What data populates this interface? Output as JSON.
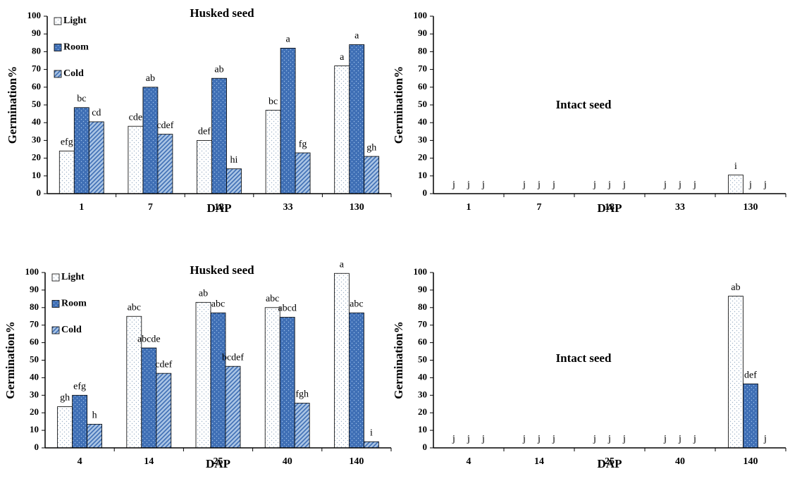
{
  "chart_data": [
    {
      "type": "bar",
      "title": "Husked seed",
      "x_label": "DAP",
      "y_label": "Germination%",
      "categories": [
        "1",
        "7",
        "18",
        "33",
        "130"
      ],
      "ylim": [
        0,
        100
      ],
      "yticks": [
        0,
        10,
        20,
        30,
        40,
        50,
        60,
        70,
        80,
        90,
        100
      ],
      "legend": "upper left",
      "series": [
        {
          "name": "Light",
          "color": "#ffffff",
          "pattern": "dots",
          "values": [
            24,
            38,
            30,
            47,
            72
          ],
          "labels": [
            "efg",
            "cde",
            "def",
            "bc",
            "a"
          ]
        },
        {
          "name": "Room",
          "color": "#3f6fb5",
          "pattern": "dots",
          "values": [
            48.5,
            60,
            65,
            82,
            84
          ],
          "labels": [
            "bc",
            "ab",
            "ab",
            "a",
            "a"
          ]
        },
        {
          "name": "Cold",
          "color": "#a9c4e4",
          "pattern": "diagonal",
          "values": [
            40.5,
            33.5,
            14,
            23,
            21
          ],
          "labels": [
            "cd",
            "cdef",
            "hi",
            "fg",
            "gh"
          ]
        }
      ]
    },
    {
      "type": "bar",
      "title": "Intact seed",
      "x_label": "DAP",
      "y_label": "Germination%",
      "categories": [
        "1",
        "7",
        "18",
        "33",
        "130"
      ],
      "ylim": [
        0,
        100
      ],
      "yticks": [
        0,
        10,
        20,
        30,
        40,
        50,
        60,
        70,
        80,
        90,
        100
      ],
      "series": [
        {
          "color": "#ffffff",
          "pattern": "dots",
          "values": [
            0,
            0,
            0,
            0,
            10.5
          ],
          "labels": [
            "j",
            "j",
            "j",
            "j",
            "i"
          ]
        },
        {
          "color": "#3f6fb5",
          "pattern": "dots",
          "values": [
            0,
            0,
            0,
            0,
            0
          ],
          "labels": [
            "j",
            "j",
            "j",
            "j",
            "j"
          ]
        },
        {
          "color": "#a9c4e4",
          "pattern": "diagonal",
          "values": [
            0,
            0,
            0,
            0,
            0
          ],
          "labels": [
            "j",
            "j",
            "j",
            "j",
            "j"
          ]
        }
      ]
    },
    {
      "type": "bar",
      "title": "Husked seed",
      "x_label": "DAP",
      "y_label": "Germination%",
      "categories": [
        "4",
        "14",
        "25",
        "40",
        "140"
      ],
      "ylim": [
        0,
        100
      ],
      "yticks": [
        0,
        10,
        20,
        30,
        40,
        50,
        60,
        70,
        80,
        90,
        100
      ],
      "legend": "upper left",
      "series": [
        {
          "name": "Light",
          "color": "#ffffff",
          "pattern": "dots",
          "values": [
            23.5,
            75,
            83,
            80,
            99.5
          ],
          "labels": [
            "gh",
            "abc",
            "ab",
            "abc",
            "a"
          ]
        },
        {
          "name": "Room",
          "color": "#3f6fb5",
          "pattern": "dots",
          "values": [
            30,
            57,
            77,
            74.5,
            77
          ],
          "labels": [
            "efg",
            "abcde",
            "abc",
            "abcd",
            "abc"
          ]
        },
        {
          "name": "Cold",
          "color": "#a9c4e4",
          "pattern": "diagonal",
          "values": [
            13.5,
            42.5,
            46.5,
            25.5,
            3.5
          ],
          "labels": [
            "h",
            "cdef",
            "bcdef",
            "fgh",
            "i"
          ]
        }
      ]
    },
    {
      "type": "bar",
      "title": "Intact seed",
      "x_label": "DAP",
      "y_label": "Germination%",
      "categories": [
        "4",
        "14",
        "25",
        "40",
        "140"
      ],
      "ylim": [
        0,
        100
      ],
      "yticks": [
        0,
        10,
        20,
        30,
        40,
        50,
        60,
        70,
        80,
        90,
        100
      ],
      "series": [
        {
          "color": "#ffffff",
          "pattern": "dots",
          "values": [
            0,
            0,
            0,
            0,
            86.5
          ],
          "labels": [
            "j",
            "j",
            "j",
            "j",
            "ab"
          ]
        },
        {
          "color": "#3f6fb5",
          "pattern": "dots",
          "values": [
            0,
            0,
            0,
            0,
            36.5
          ],
          "labels": [
            "j",
            "j",
            "j",
            "j",
            "def"
          ]
        },
        {
          "color": "#a9c4e4",
          "pattern": "diagonal",
          "values": [
            0,
            0,
            0,
            0,
            0
          ],
          "labels": [
            "j",
            "j",
            "j",
            "j",
            "j"
          ]
        }
      ]
    }
  ]
}
